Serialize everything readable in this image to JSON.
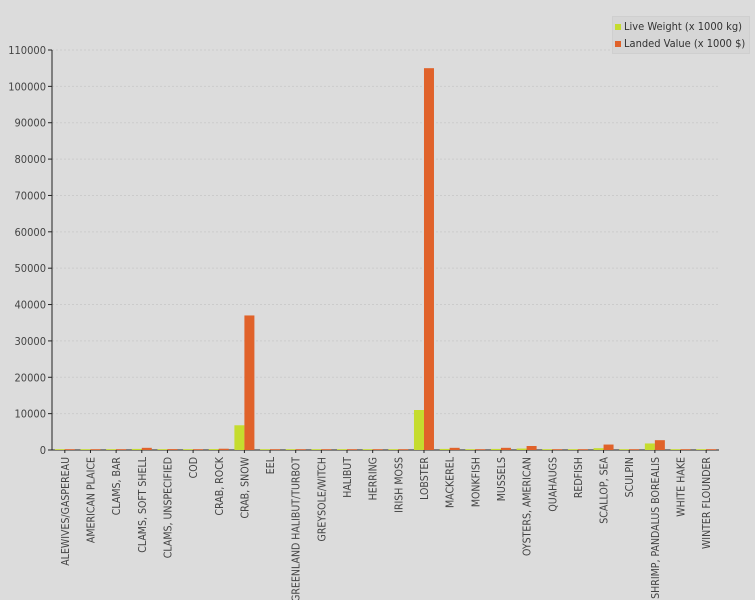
{
  "chart_data": {
    "type": "bar",
    "title": "",
    "xlabel": "",
    "ylabel": "",
    "ylim": [
      0,
      110000
    ],
    "yticks": [
      0,
      10000,
      20000,
      30000,
      40000,
      50000,
      60000,
      70000,
      80000,
      90000,
      100000,
      110000
    ],
    "grid": true,
    "legend_position": "top-right",
    "categories": [
      "ALEWIVES/GASPEREAU",
      "AMERICAN PLAICE",
      "CLAMS, BAR",
      "CLAMS, SOFT SHELL",
      "CLAMS, UNSPECIFIED",
      "COD",
      "CRAB, ROCK",
      "CRAB, SNOW",
      "EEL",
      "GREENLAND HALIBUT/TURBOT",
      "GREYSOLE/WITCH",
      "HALIBUT",
      "HERRING",
      "IRISH MOSS",
      "LOBSTER",
      "MACKEREL",
      "MONKFISH",
      "MUSSELS",
      "OYSTERS, AMERICAN",
      "QUAHAUGS",
      "REDFISH",
      "SCALLOP, SEA",
      "SCULPIN",
      "SHRIMP, PANDALUS BOREALIS",
      "WHITE HAKE",
      "WINTER FLOUNDER"
    ],
    "series": [
      {
        "name": "Live Weight (x 1000 kg)",
        "color": "#c5dc2e",
        "values": [
          200,
          30,
          10,
          300,
          150,
          60,
          250,
          6800,
          10,
          15,
          50,
          30,
          150,
          100,
          11000,
          300,
          30,
          300,
          400,
          60,
          30,
          500,
          10,
          1800,
          60,
          30
        ]
      },
      {
        "name": "Landed Value (x 1000 $)",
        "color": "#e0622a",
        "values": [
          150,
          80,
          30,
          600,
          250,
          150,
          350,
          37000,
          80,
          100,
          150,
          150,
          100,
          50,
          105000,
          600,
          150,
          600,
          1100,
          200,
          50,
          1500,
          30,
          2700,
          150,
          80
        ]
      }
    ]
  }
}
